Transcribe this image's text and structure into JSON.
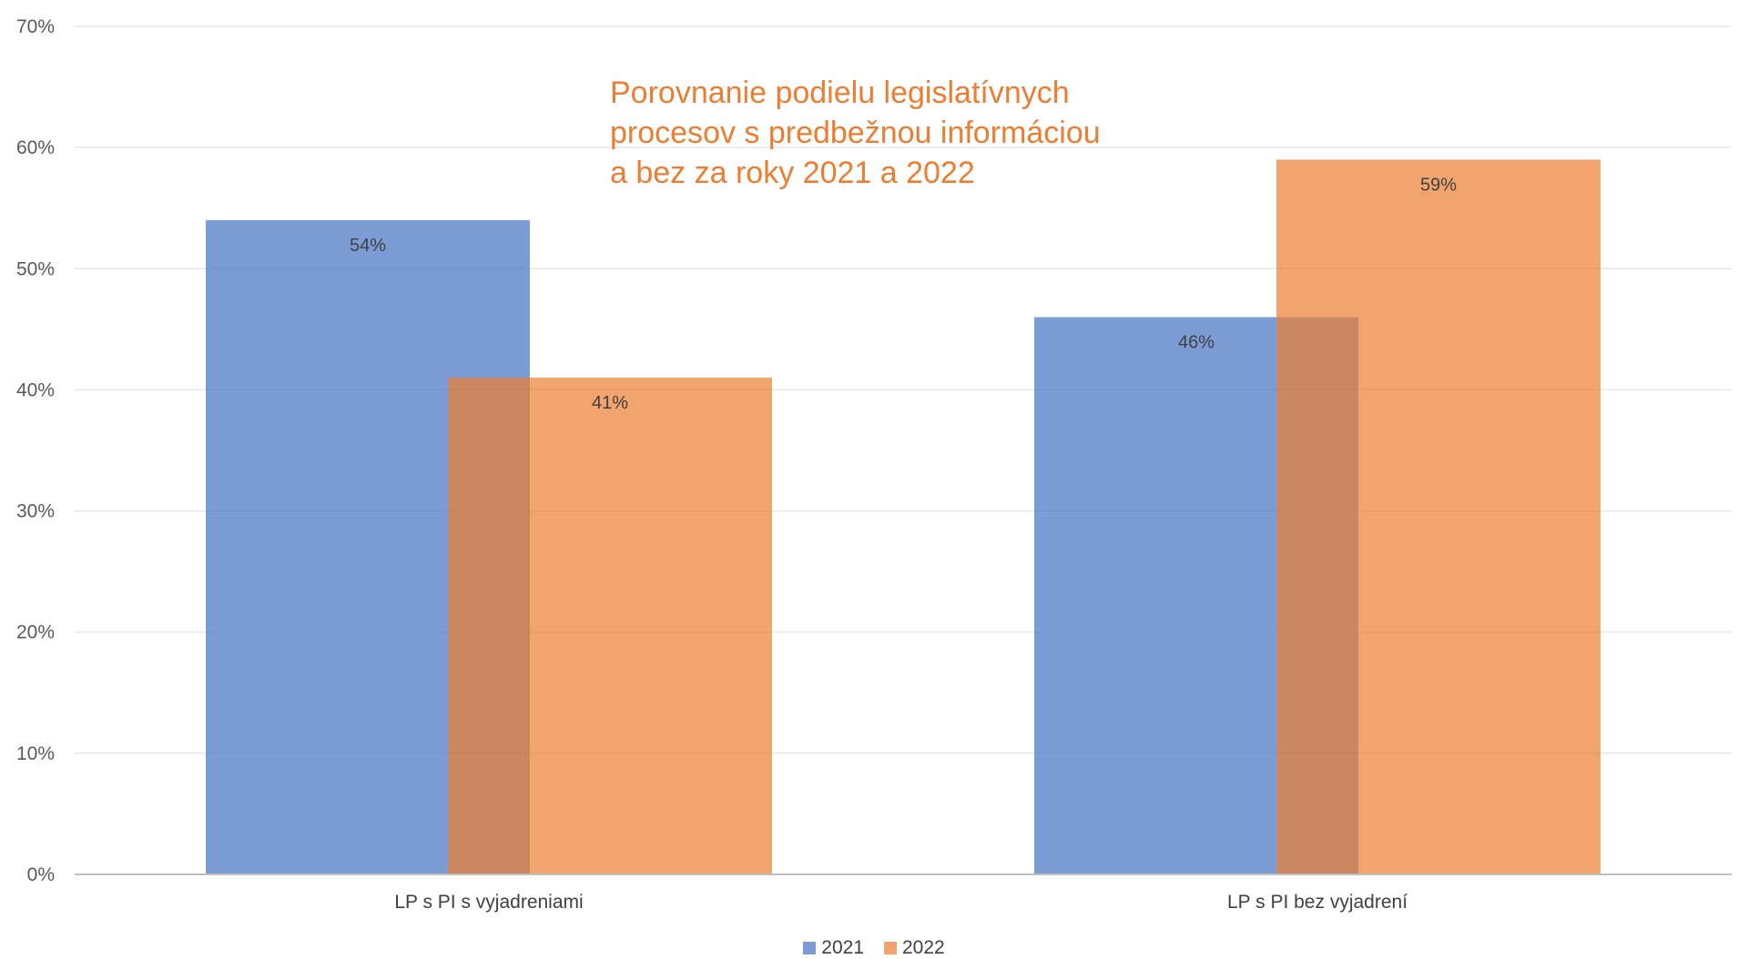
{
  "chart_data": {
    "type": "bar",
    "title": "Porovnanie podielu legislatívnych procesov s predbežnou informáciou a bez za roky 2021 a 2022",
    "categories": [
      "LP s PI s vyjadreniami",
      "LP s PI bez vyjadrení"
    ],
    "series": [
      {
        "name": "2021",
        "values": [
          0.54,
          0.46
        ],
        "labels": [
          "54%",
          "46%"
        ],
        "color": "#4472C4"
      },
      {
        "name": "2022",
        "values": [
          0.41,
          0.59
        ],
        "labels": [
          "41%",
          "59%"
        ],
        "color": "#ED7D31"
      }
    ],
    "ylim": [
      0,
      0.7
    ],
    "yticks": [
      0,
      0.1,
      0.2,
      0.3,
      0.4,
      0.5,
      0.6,
      0.7
    ],
    "ytick_labels": [
      "0%",
      "10%",
      "20%",
      "30%",
      "40%",
      "50%",
      "60%",
      "70%"
    ],
    "xlabel": "",
    "ylabel": "",
    "grid": true,
    "legend": "bottom",
    "bar_overlap": true,
    "bar_opacity": 0.7
  }
}
